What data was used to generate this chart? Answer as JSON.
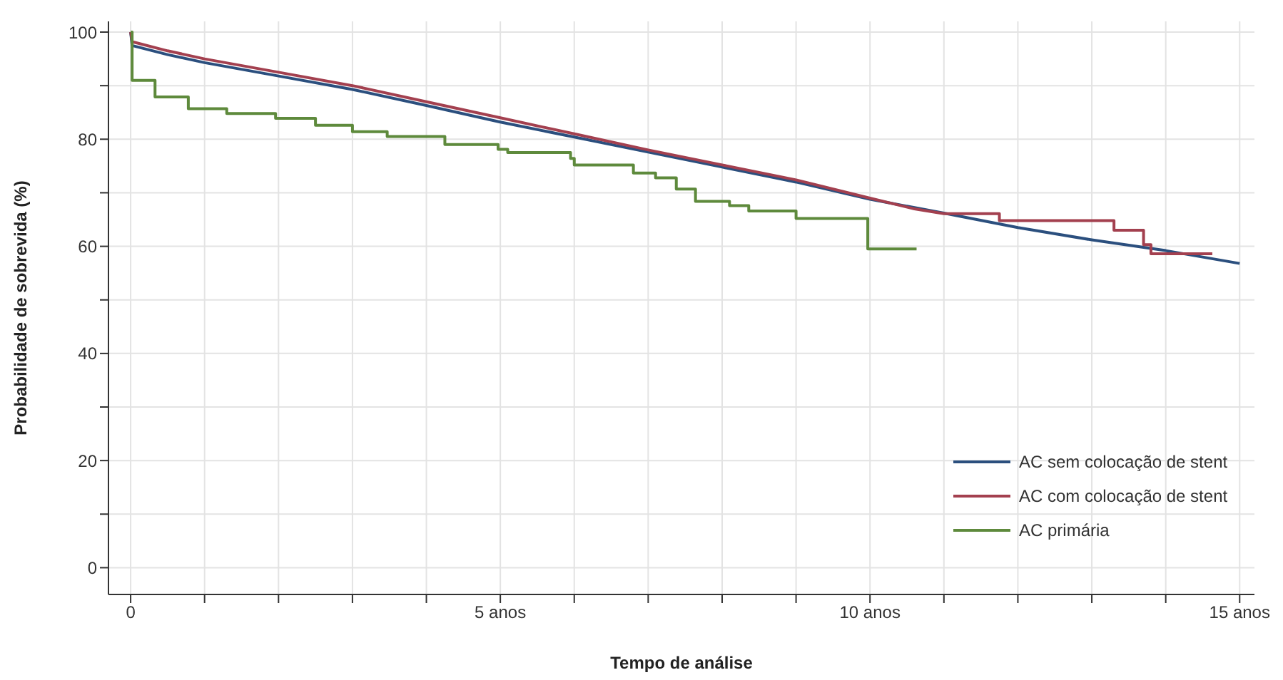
{
  "chart_data": {
    "type": "line",
    "xlabel": "Tempo de análise",
    "ylabel": "Probabilidade de sobrevida (%)",
    "xlim": [
      -0.3,
      15.2
    ],
    "ylim": [
      -5,
      102
    ],
    "xticks": [
      0,
      {
        "value": 1,
        "label": null
      },
      {
        "value": 2,
        "label": null
      },
      {
        "value": 3,
        "label": null
      },
      {
        "value": 4,
        "label": null
      },
      {
        "value": 5,
        "label": "5 anos"
      },
      {
        "value": 6,
        "label": null
      },
      {
        "value": 7,
        "label": null
      },
      {
        "value": 8,
        "label": null
      },
      {
        "value": 9,
        "label": null
      },
      {
        "value": 10,
        "label": "10 anos"
      },
      {
        "value": 11,
        "label": null
      },
      {
        "value": 12,
        "label": null
      },
      {
        "value": 13,
        "label": null
      },
      {
        "value": 14,
        "label": null
      },
      {
        "value": 15,
        "label": "15 anos"
      }
    ],
    "yticks": [
      0,
      {
        "value": 10,
        "label": null
      },
      20,
      {
        "value": 30,
        "label": null
      },
      40,
      {
        "value": 50,
        "label": null
      },
      60,
      {
        "value": 70,
        "label": null
      },
      80,
      {
        "value": 90,
        "label": null
      },
      100
    ],
    "grid": true,
    "legend": "bottom right",
    "series": [
      {
        "name": "AC sem colocação de stent",
        "color": "#2b4f7e",
        "type": "line",
        "x": [
          0,
          0.02,
          0.5,
          1,
          2,
          3,
          4,
          5,
          6,
          7,
          8,
          9,
          10,
          11,
          12,
          13,
          14,
          15
        ],
        "values": [
          100,
          97.5,
          95.8,
          94.3,
          91.8,
          89.3,
          86.3,
          83.2,
          80.4,
          77.6,
          74.8,
          72,
          68.8,
          66.2,
          63.5,
          61.2,
          59.2,
          56.8
        ]
      },
      {
        "name": "AC com colocação de stent",
        "color": "#a3404f",
        "type": "line",
        "x": [
          0,
          0.02,
          0.5,
          1,
          2,
          3,
          4,
          5,
          6,
          7,
          8,
          9,
          10,
          10.6,
          11,
          11.75,
          11.75,
          13.3,
          13.3,
          13.7,
          13.7,
          13.8,
          13.8,
          14.63
        ],
        "values": [
          100,
          98.2,
          96.5,
          95,
          92.5,
          90,
          87,
          84,
          81,
          78,
          75.2,
          72.4,
          69,
          67,
          66.1,
          66.1,
          64.8,
          64.8,
          63,
          63,
          60.3,
          60.3,
          58.6,
          58.6
        ]
      },
      {
        "name": "AC primária",
        "color": "#5e8a3c",
        "type": "step",
        "x": [
          0,
          0.02,
          0.33,
          0.78,
          1.3,
          1.96,
          2.5,
          3.0,
          3.47,
          4.25,
          4.97,
          5.1,
          5.95,
          6.0,
          6.8,
          7.1,
          7.38,
          7.64,
          8.1,
          8.36,
          9.0,
          9.97,
          10.63
        ],
        "values": [
          100,
          91,
          87.9,
          85.7,
          84.8,
          83.9,
          82.6,
          81.4,
          80.5,
          79,
          78.1,
          77.5,
          76.4,
          75.2,
          73.7,
          72.8,
          70.7,
          68.4,
          67.6,
          66.6,
          65.2,
          59.5,
          59.5
        ]
      }
    ]
  }
}
